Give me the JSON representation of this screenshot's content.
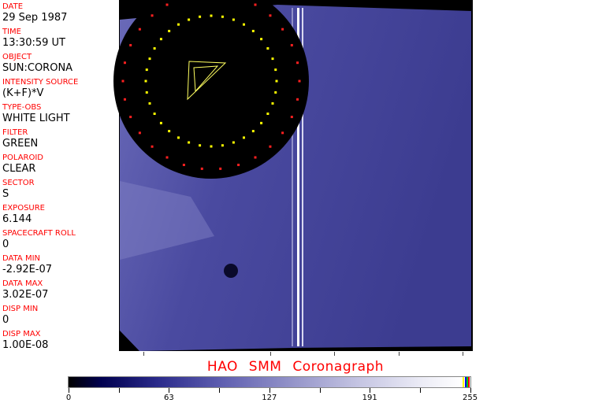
{
  "fields": [
    {
      "label": "DATE",
      "value": "29 Sep 1987"
    },
    {
      "label": "TIME",
      "value": "13:30:59 UT"
    },
    {
      "label": "OBJECT",
      "value": "SUN:CORONA"
    },
    {
      "label": "INTENSITY SOURCE",
      "value": "(K+F)*V"
    },
    {
      "label": "TYPE-OBS",
      "value": "WHITE LIGHT"
    },
    {
      "label": "FILTER",
      "value": "GREEN"
    },
    {
      "label": "POLAROID",
      "value": "CLEAR"
    },
    {
      "label": "SECTOR",
      "value": "S"
    },
    {
      "label": "EXPOSURE",
      "value": "6.144"
    },
    {
      "label": "SPACECRAFT ROLL",
      "value": "0"
    },
    {
      "label": "DATA MIN",
      "value": "-2.92E-07"
    },
    {
      "label": "DATA MAX",
      "value": "3.02E-07"
    },
    {
      "label": "DISP MIN",
      "value": "0"
    },
    {
      "label": "DISP MAX",
      "value": "1.00E-08"
    }
  ],
  "title": "HAO  SMM  Coronagraph",
  "colorbar": {
    "ticks": [
      "0",
      "63",
      "127",
      "191",
      "255"
    ],
    "end_colors": [
      "#ffff00",
      "#0000ff",
      "#00c000",
      "#ff0000"
    ]
  },
  "colors": {
    "label": "#ff0000",
    "background": "#000000",
    "image_tint": "#4a4aa0"
  }
}
